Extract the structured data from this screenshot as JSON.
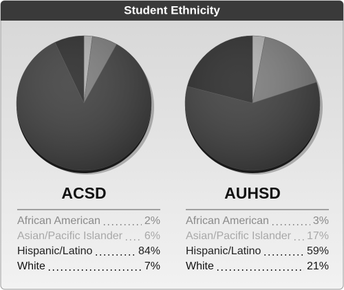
{
  "title": "Student Ethnicity",
  "chart_data": [
    {
      "type": "pie",
      "title": "ACSD",
      "categories": [
        "African American",
        "Asian/Pacific Islander",
        "Hispanic/Latino",
        "White"
      ],
      "values": [
        2,
        6,
        84,
        7
      ],
      "value_labels": [
        "2%",
        "6%",
        "84%",
        "7%"
      ],
      "colors": [
        "#b0b0b0",
        "#7a7a7a",
        "#3c3c3c",
        "#262626"
      ]
    },
    {
      "type": "pie",
      "title": "AUHSD",
      "categories": [
        "African American",
        "Asian/Pacific Islander",
        "Hispanic/Latino",
        "White"
      ],
      "values": [
        3,
        17,
        59,
        21
      ],
      "value_labels": [
        "3%",
        "17%",
        "59%",
        "21%"
      ],
      "colors": [
        "#b0b0b0",
        "#7a7a7a",
        "#3c3c3c",
        "#262626"
      ]
    }
  ]
}
